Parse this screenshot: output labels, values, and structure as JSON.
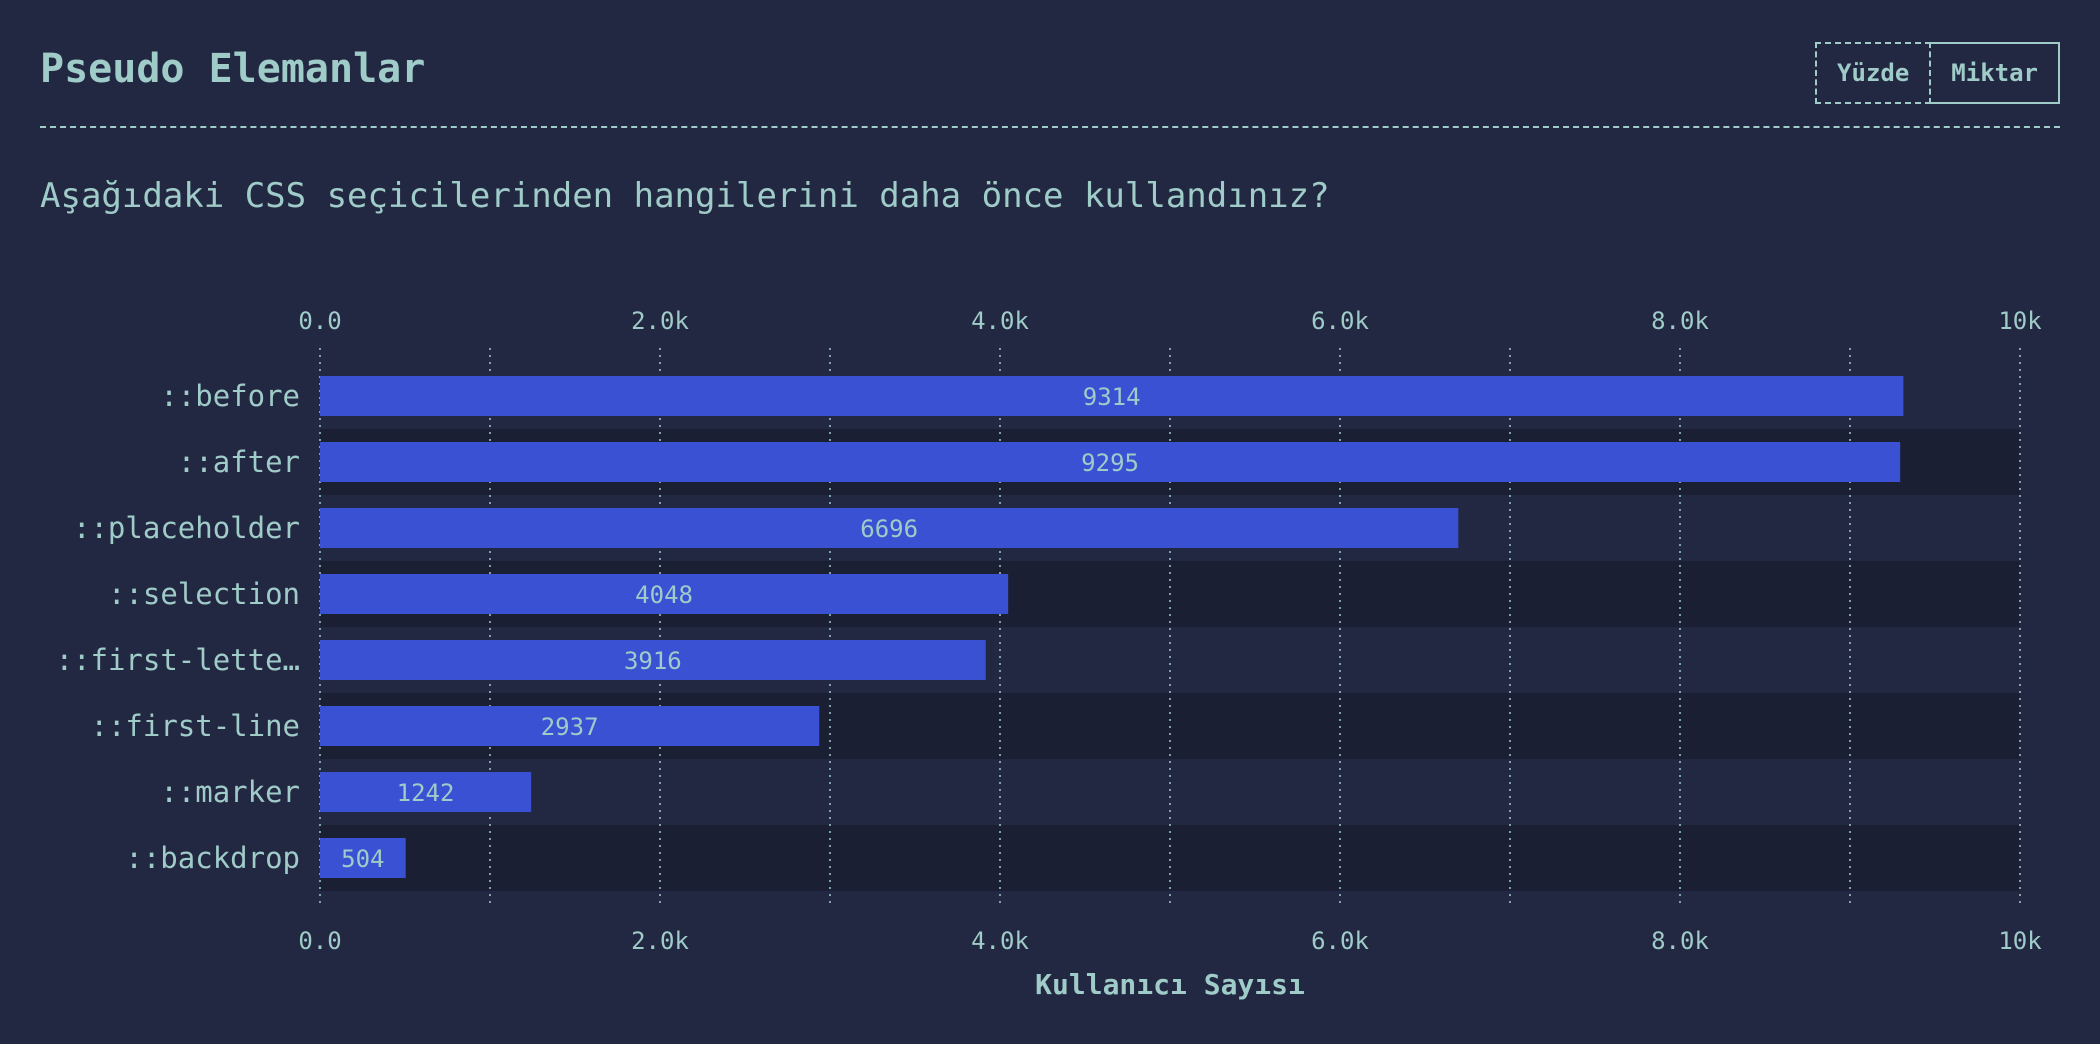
{
  "header": {
    "title": "Pseudo Elemanlar",
    "toggle": {
      "percent_label": "Yüzde",
      "count_label": "Miktar",
      "active": "count"
    }
  },
  "question": "Aşağıdaki CSS seçicilerinden hangilerini daha önce kullandınız?",
  "colors": {
    "background": "#232842",
    "bar": "#3b51d3",
    "text": "#9fcbc8",
    "row_alt": "#1b1f33"
  },
  "chart_data": {
    "type": "bar",
    "orientation": "horizontal",
    "categories": [
      "::before",
      "::after",
      "::placeholder",
      "::selection",
      "::first-lette…",
      "::first-line",
      "::marker",
      "::backdrop"
    ],
    "values": [
      9314,
      9295,
      6696,
      4048,
      3916,
      2937,
      1242,
      504
    ],
    "xlabel": "Kullanıcı Sayısı",
    "xlim": [
      0,
      10000
    ],
    "ticks": [
      0,
      2000,
      4000,
      6000,
      8000,
      10000
    ],
    "tick_labels": [
      "0.0",
      "2.0k",
      "4.0k",
      "6.0k",
      "8.0k",
      "10k"
    ],
    "minor_ticks": [
      1000,
      3000,
      5000,
      7000,
      9000
    ],
    "grid": true,
    "axis_ticks_top_and_bottom": true
  }
}
